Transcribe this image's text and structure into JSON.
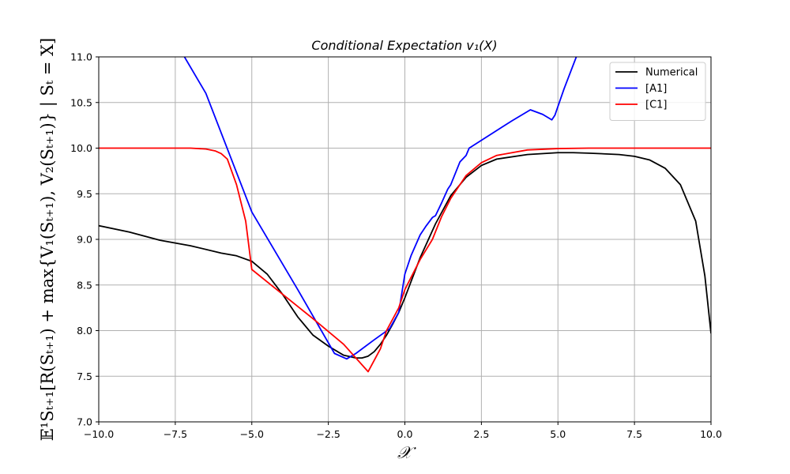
{
  "chart_data": {
    "type": "line",
    "title": "Conditional Expectation v₁(X)",
    "xlabel": "𝒳",
    "ylabel": "𝔼¹Sₜ₊₁[R(Sₜ₊₁) + max{V₁(Sₜ₊₁), V₂(Sₜ₊₁)} | Sₜ = X]",
    "xlim": [
      -10,
      10
    ],
    "ylim": [
      7,
      11
    ],
    "xticks": [
      -10,
      -7.5,
      -5,
      -2.5,
      0,
      2.5,
      5,
      7.5,
      10
    ],
    "xtick_labels": [
      "−10.0",
      "−7.5",
      "−5.0",
      "−2.5",
      "0.0",
      "2.5",
      "5.0",
      "7.5",
      "10.0"
    ],
    "yticks": [
      7,
      7.5,
      8,
      8.5,
      9,
      9.5,
      10,
      10.5,
      11
    ],
    "ytick_labels": [
      "7.0",
      "7.5",
      "8.0",
      "8.5",
      "9.0",
      "9.5",
      "10.0",
      "10.5",
      "11.0"
    ],
    "grid": true,
    "legend_position": "top-right",
    "series": [
      {
        "name": "Numerical",
        "color": "#000000",
        "x": [
          -10,
          -9,
          -8,
          -7,
          -6,
          -5.5,
          -5,
          -4.5,
          -4,
          -3.5,
          -3,
          -2.5,
          -2,
          -1.6,
          -1.4,
          -1.2,
          -1,
          -0.8,
          -0.6,
          -0.4,
          -0.2,
          0,
          0.5,
          1,
          1.5,
          2,
          2.5,
          3,
          4,
          5,
          5.5,
          6,
          7,
          7.5,
          8,
          8.5,
          9,
          9.5,
          9.8,
          10
        ],
        "y": [
          9.15,
          9.08,
          8.99,
          8.93,
          8.85,
          8.82,
          8.76,
          8.62,
          8.4,
          8.15,
          7.95,
          7.83,
          7.73,
          7.7,
          7.7,
          7.72,
          7.77,
          7.85,
          7.95,
          8.07,
          8.2,
          8.36,
          8.8,
          9.17,
          9.48,
          9.68,
          9.81,
          9.88,
          9.93,
          9.95,
          9.95,
          9.945,
          9.93,
          9.91,
          9.87,
          9.78,
          9.6,
          9.2,
          8.6,
          7.97
        ]
      },
      {
        "name": "[A1]",
        "color": "#0000ff",
        "x": [
          -7.2,
          -6.5,
          -5,
          -3.5,
          -2.3,
          -1.9,
          -1.6,
          -1,
          -0.5,
          -0.2,
          0,
          0.2,
          0.5,
          0.7,
          0.9,
          1,
          1.2,
          1.4,
          1.5,
          1.8,
          2,
          2.1,
          3.5,
          4.1,
          4.5,
          4.7,
          4.8,
          4.9,
          5.2,
          5.6
        ],
        "y": [
          11.0,
          10.6,
          9.3,
          8.45,
          7.75,
          7.69,
          7.75,
          7.9,
          8.02,
          8.2,
          8.62,
          8.82,
          9.05,
          9.15,
          9.24,
          9.26,
          9.4,
          9.55,
          9.6,
          9.85,
          9.92,
          10.0,
          10.3,
          10.42,
          10.37,
          10.33,
          10.31,
          10.36,
          10.65,
          11.0
        ]
      },
      {
        "name": "[C1]",
        "color": "#ff0000",
        "x": [
          -10,
          -7,
          -6.5,
          -6.2,
          -6,
          -5.8,
          -5.5,
          -5.2,
          -5,
          -4,
          -3,
          -2,
          -1.2,
          -0.8,
          -0.6,
          -0.2,
          0,
          0.5,
          0.9,
          1.2,
          1.5,
          2,
          2.5,
          3,
          4,
          5,
          6,
          7,
          10
        ],
        "y": [
          10.0,
          10.0,
          9.99,
          9.97,
          9.94,
          9.88,
          9.6,
          9.2,
          8.67,
          8.4,
          8.13,
          7.85,
          7.55,
          7.8,
          8.0,
          8.25,
          8.45,
          8.78,
          9.0,
          9.25,
          9.45,
          9.7,
          9.84,
          9.92,
          9.98,
          9.995,
          10.0,
          10.0,
          10.0
        ]
      }
    ]
  }
}
